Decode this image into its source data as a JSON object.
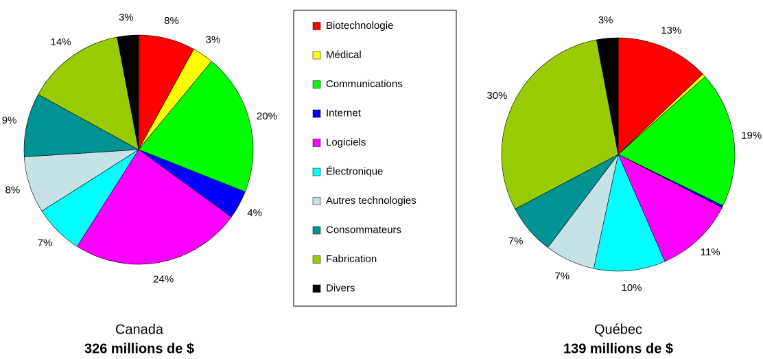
{
  "chart_data": [
    {
      "type": "pie",
      "title": "Canada",
      "subtitle": "326 millions de $",
      "categories": [
        "Biotechnologie",
        "Médical",
        "Communications",
        "Internet",
        "Logiciels",
        "Électronique",
        "Autres technologies",
        "Consommateurs",
        "Fabrication",
        "Divers"
      ],
      "colors": [
        "#ff0000",
        "#ffff00",
        "#00ff00",
        "#0000ff",
        "#ff00ff",
        "#00ffff",
        "#c6e2e6",
        "#009393",
        "#99cc00",
        "#000000"
      ],
      "values": [
        8,
        3,
        20,
        4,
        24,
        7,
        8,
        9,
        14,
        3
      ],
      "value_labels": [
        "8%",
        "3%",
        "20%",
        "4%",
        "24%",
        "7%",
        "8%",
        "9%",
        "14%",
        "3%"
      ]
    },
    {
      "type": "pie",
      "title": "Québec",
      "subtitle": "139 millions de $",
      "values": [
        13,
        0.5,
        19,
        0.3,
        11,
        10,
        7,
        7,
        30,
        3
      ],
      "value_labels": [
        "13%",
        null,
        "19%",
        null,
        "11%",
        "10%",
        "7%",
        "7%",
        "30%",
        "3%"
      ]
    }
  ]
}
